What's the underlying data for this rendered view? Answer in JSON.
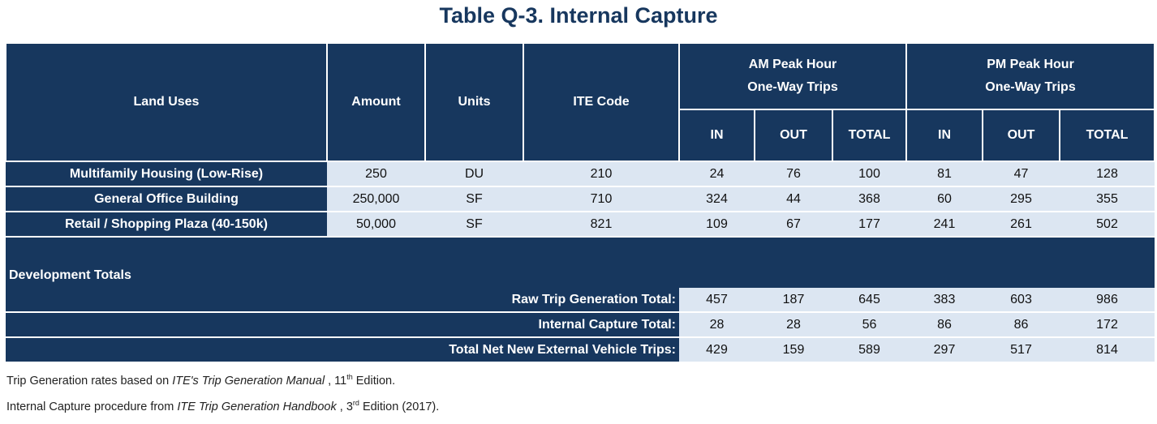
{
  "title": "Table Q-3. Internal Capture",
  "headers": {
    "land_uses": "Land Uses",
    "amount": "Amount",
    "units": "Units",
    "ite_code": "ITE Code",
    "am_group_line1": "AM Peak Hour",
    "am_group_line2": "One-Way Trips",
    "pm_group_line1": "PM Peak Hour",
    "pm_group_line2": "One-Way Trips",
    "sub": [
      "IN",
      "OUT",
      "TOTAL",
      "IN",
      "OUT",
      "TOTAL"
    ]
  },
  "rows": [
    {
      "land_use": "Multifamily Housing (Low-Rise)",
      "amount": "250",
      "units": "DU",
      "ite_code": "210",
      "am_in": "24",
      "am_out": "76",
      "am_total": "100",
      "pm_in": "81",
      "pm_out": "47",
      "pm_total": "128"
    },
    {
      "land_use": "General Office Building",
      "amount": "250,000",
      "units": "SF",
      "ite_code": "710",
      "am_in": "324",
      "am_out": "44",
      "am_total": "368",
      "pm_in": "60",
      "pm_out": "295",
      "pm_total": "355"
    },
    {
      "land_use": "Retail / Shopping Plaza (40-150k)",
      "amount": "50,000",
      "units": "SF",
      "ite_code": "821",
      "am_in": "109",
      "am_out": "67",
      "am_total": "177",
      "pm_in": "241",
      "pm_out": "261",
      "pm_total": "502"
    }
  ],
  "section_label": "Development Totals",
  "totals": [
    {
      "label": "Raw Trip Generation Total:",
      "am_in": "457",
      "am_out": "187",
      "am_total": "645",
      "pm_in": "383",
      "pm_out": "603",
      "pm_total": "986"
    },
    {
      "label": "Internal Capture Total:",
      "am_in": "28",
      "am_out": "28",
      "am_total": "56",
      "pm_in": "86",
      "pm_out": "86",
      "pm_total": "172"
    },
    {
      "label": "Total Net New External Vehicle Trips:",
      "am_in": "429",
      "am_out": "159",
      "am_total": "589",
      "pm_in": "297",
      "pm_out": "517",
      "pm_total": "814"
    }
  ],
  "footnotes": {
    "note1_pre": "Trip Generation rates based on ",
    "note1_italic": "ITE's Trip Generation Manual",
    "note1_mid": " , 11",
    "note1_sup": "th",
    "note1_post": " Edition.",
    "note2_pre": "Internal Capture procedure from ",
    "note2_italic": "ITE Trip Generation Handbook",
    "note2_mid": " , 3",
    "note2_sup": "rd",
    "note2_post": " Edition (2017)."
  },
  "colors": {
    "header_bg": "#17375e",
    "cell_bg": "#dce6f2",
    "title": "#17375e"
  }
}
